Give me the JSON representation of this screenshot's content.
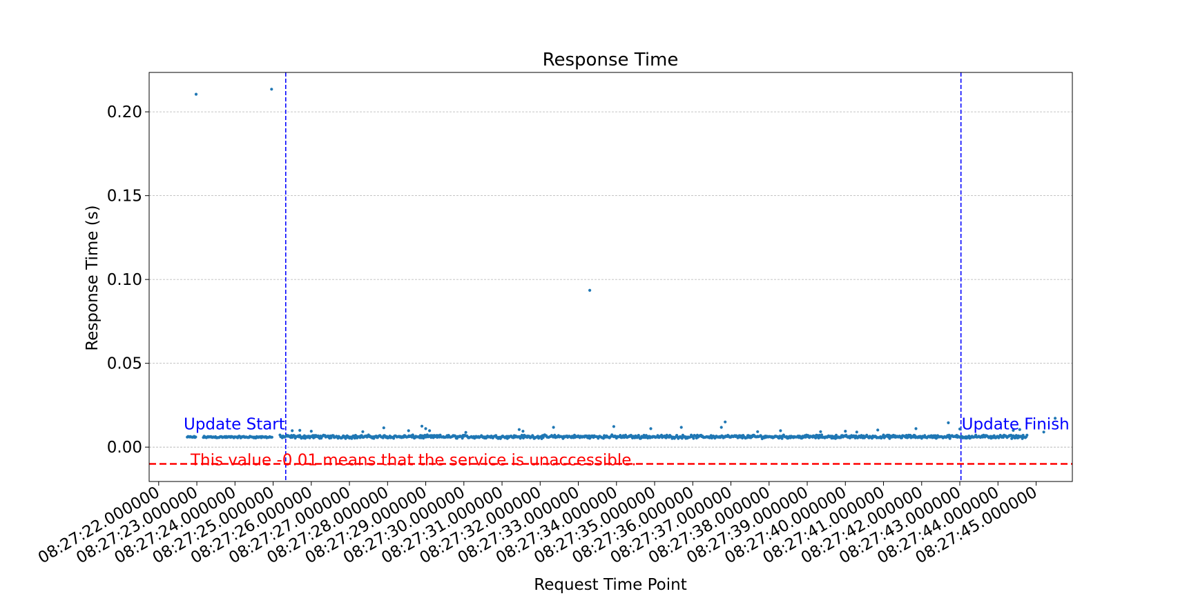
{
  "chart_data": {
    "type": "scatter",
    "title": "Response Time",
    "xlabel": "Request Time Point",
    "ylabel": "Response Time (s)",
    "x_is_time": true,
    "xlim": [
      "08:27:21.750",
      "08:27:45.950"
    ],
    "ylim": [
      -0.0205,
      0.2235
    ],
    "yticks": [
      0.0,
      0.05,
      0.1,
      0.15,
      0.2
    ],
    "ytick_labels": [
      "0.00",
      "0.05",
      "0.10",
      "0.15",
      "0.20"
    ],
    "xticks": [
      "08:27:22",
      "08:27:23",
      "08:27:24",
      "08:27:25",
      "08:27:26",
      "08:27:27",
      "08:27:28",
      "08:27:29",
      "08:27:30",
      "08:27:31",
      "08:27:32",
      "08:27:33",
      "08:27:34",
      "08:27:35",
      "08:27:36",
      "08:27:37",
      "08:27:38",
      "08:27:39",
      "08:27:40",
      "08:27:41",
      "08:27:42",
      "08:27:43",
      "08:27:44",
      "08:27:45"
    ],
    "xtick_labels": [
      "08:27:22.000000",
      "08:27:23.000000",
      "08:27:24.000000",
      "08:27:25.000000",
      "08:27:26.000000",
      "08:27:27.000000",
      "08:27:28.000000",
      "08:27:29.000000",
      "08:27:30.000000",
      "08:27:31.000000",
      "08:27:32.000000",
      "08:27:33.000000",
      "08:27:34.000000",
      "08:27:35.000000",
      "08:27:36.000000",
      "08:27:37.000000",
      "08:27:38.000000",
      "08:27:39.000000",
      "08:27:40.000000",
      "08:27:41.000000",
      "08:27:42.000000",
      "08:27:43.000000",
      "08:27:44.000000",
      "08:27:45.000000"
    ],
    "grid": "y-dashed",
    "series": [
      {
        "color": "#1f77b4",
        "marker_size": 3,
        "segments": [
          {
            "x_start": "08:27:22.750",
            "x_end": "08:27:22.980",
            "y_mean": 0.006,
            "y_jitter": 0.0006,
            "step_s": 0.02
          },
          {
            "x_start": "08:27:23.170",
            "x_end": "08:27:24.980",
            "y_mean": 0.006,
            "y_jitter": 0.0007,
            "step_s": 0.02
          },
          {
            "x_start": "08:27:25.180",
            "x_end": "08:27:44.780",
            "y_mean": 0.0062,
            "y_jitter": 0.0012,
            "step_s": 0.02
          }
        ],
        "points": [
          {
            "x": "08:27:22.980",
            "y": 0.2105
          },
          {
            "x": "08:27:24.960",
            "y": 0.2135
          },
          {
            "x": "08:27:33.300",
            "y": 0.0935
          },
          {
            "x": "08:27:25.500",
            "y": 0.0098
          },
          {
            "x": "08:27:25.700",
            "y": 0.01
          },
          {
            "x": "08:27:26.000",
            "y": 0.0095
          },
          {
            "x": "08:27:27.350",
            "y": 0.0092
          },
          {
            "x": "08:27:27.900",
            "y": 0.0115
          },
          {
            "x": "08:27:28.550",
            "y": 0.0098
          },
          {
            "x": "08:27:28.900",
            "y": 0.0125
          },
          {
            "x": "08:27:29.000",
            "y": 0.011
          },
          {
            "x": "08:27:29.100",
            "y": 0.0098
          },
          {
            "x": "08:27:30.050",
            "y": 0.0088
          },
          {
            "x": "08:27:31.450",
            "y": 0.0105
          },
          {
            "x": "08:27:31.550",
            "y": 0.0095
          },
          {
            "x": "08:27:32.350",
            "y": 0.0118
          },
          {
            "x": "08:27:33.930",
            "y": 0.0123
          },
          {
            "x": "08:27:34.900",
            "y": 0.011
          },
          {
            "x": "08:27:35.700",
            "y": 0.0118
          },
          {
            "x": "08:27:36.850",
            "y": 0.015
          },
          {
            "x": "08:27:36.750",
            "y": 0.0118
          },
          {
            "x": "08:27:39.350",
            "y": 0.0092
          },
          {
            "x": "08:27:40.300",
            "y": 0.009
          },
          {
            "x": "08:27:40.850",
            "y": 0.0102
          },
          {
            "x": "08:27:41.850",
            "y": 0.011
          },
          {
            "x": "08:27:43.000",
            "y": 0.0108
          },
          {
            "x": "08:27:44.400",
            "y": 0.01
          },
          {
            "x": "08:27:44.570",
            "y": 0.0105
          },
          {
            "x": "08:27:40.000",
            "y": 0.0095
          },
          {
            "x": "08:27:42.700",
            "y": 0.0145
          },
          {
            "x": "08:27:45.200",
            "y": 0.009
          },
          {
            "x": "08:27:45.500",
            "y": 0.0172
          },
          {
            "x": "08:27:37.700",
            "y": 0.0092
          },
          {
            "x": "08:27:38.300",
            "y": 0.0098
          }
        ]
      }
    ],
    "reference_lines": [
      {
        "axis": "x",
        "at": "08:27:25.330",
        "color": "#0000ff",
        "style": "dashed",
        "label": "Update Start",
        "label_side": "left"
      },
      {
        "axis": "x",
        "at": "08:27:43.030",
        "color": "#0000ff",
        "style": "dashed",
        "label": "Update Finish",
        "label_side": "right"
      },
      {
        "axis": "y",
        "at": -0.01,
        "color": "#ff0000",
        "style": "dashed",
        "label": "This value -0.01 means that the service is unaccessible."
      }
    ]
  }
}
